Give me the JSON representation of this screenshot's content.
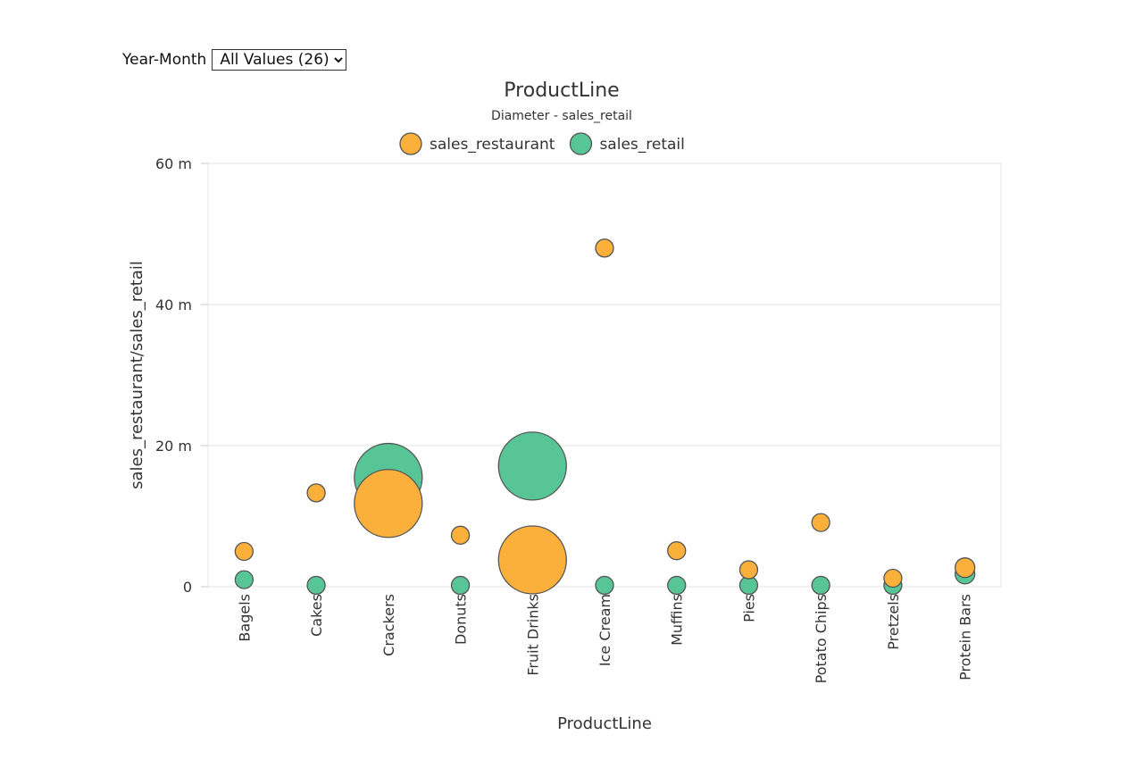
{
  "filter": {
    "label": "Year-Month",
    "selected": "All Values (26)"
  },
  "colors": {
    "sales_restaurant": "#FBB03B",
    "sales_retail": "#57C596",
    "stroke": "#555555",
    "grid": "#e6e6e6"
  },
  "chart_data": {
    "type": "scatter",
    "subtype": "bubble",
    "title": "ProductLine",
    "subtitle": "Diameter - sales_retail",
    "xlabel": "ProductLine",
    "ylabel": "sales_restaurant/sales_retail",
    "ylim": [
      0,
      60000000
    ],
    "yticks": [
      {
        "value": 0,
        "label": "0"
      },
      {
        "value": 20000000,
        "label": "20 m"
      },
      {
        "value": 40000000,
        "label": "40 m"
      },
      {
        "value": 60000000,
        "label": "60 m"
      }
    ],
    "legend": [
      "sales_restaurant",
      "sales_retail"
    ],
    "legend_position": "top-center",
    "grid": true,
    "categories": [
      "Bagels",
      "Cakes",
      "Crackers",
      "Donuts",
      "Fruit Drinks",
      "Ice Cream",
      "Muffins",
      "Pies",
      "Potato Chips",
      "Pretzels",
      "Protein Bars"
    ],
    "series": [
      {
        "name": "sales_restaurant",
        "values": [
          5000000,
          13300000,
          11800000,
          7300000,
          3800000,
          48000000,
          5100000,
          2400000,
          9100000,
          1200000,
          2700000
        ],
        "size": [
          10,
          10,
          38,
          10,
          38,
          10,
          10,
          10,
          10,
          10,
          11
        ]
      },
      {
        "name": "sales_retail",
        "values": [
          1000000,
          200000,
          15500000,
          200000,
          17100000,
          200000,
          200000,
          200000,
          200000,
          200000,
          1800000
        ],
        "size": [
          10,
          10,
          38,
          10,
          38,
          10,
          10,
          10,
          10,
          10,
          11
        ]
      }
    ]
  }
}
